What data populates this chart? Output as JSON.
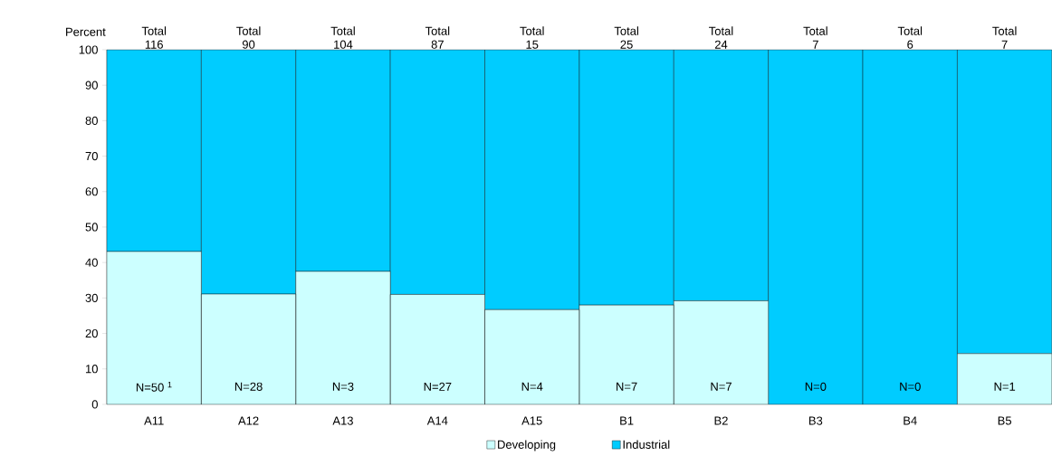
{
  "chart_data": {
    "type": "bar",
    "stacked": true,
    "ylabel": "Percent",
    "categories": [
      "A11",
      "A12",
      "A13",
      "A14",
      "A15",
      "B1",
      "B2",
      "B3",
      "B4",
      "B5"
    ],
    "series": [
      {
        "name": "Developing",
        "color": "#ccffff",
        "values": [
          43.1,
          31.1,
          37.5,
          31.0,
          26.7,
          28.0,
          29.2,
          0,
          0,
          14.3
        ]
      },
      {
        "name": "Industrial",
        "color": "#00ccff",
        "values": [
          56.9,
          68.9,
          62.5,
          69.0,
          73.3,
          72.0,
          70.8,
          100,
          100,
          85.7
        ]
      }
    ],
    "totals": [
      "Total 116",
      "Total 90",
      "Total 104",
      "Total 87",
      "Total 15",
      "Total 25",
      "Total 24",
      "Total 7",
      "Total 6",
      "Total 7"
    ],
    "annotations": [
      "N=50   $^{1}$",
      "N=28",
      "N=3",
      "N=27",
      "N=4",
      "N=7",
      "N=7",
      "N=0",
      "N=0",
      "N=1"
    ],
    "ylim": [
      0,
      100
    ],
    "yticks": [
      0,
      10,
      20,
      30,
      40,
      50,
      60,
      70,
      80,
      90,
      100
    ],
    "grid": false,
    "legend": "bottom"
  }
}
